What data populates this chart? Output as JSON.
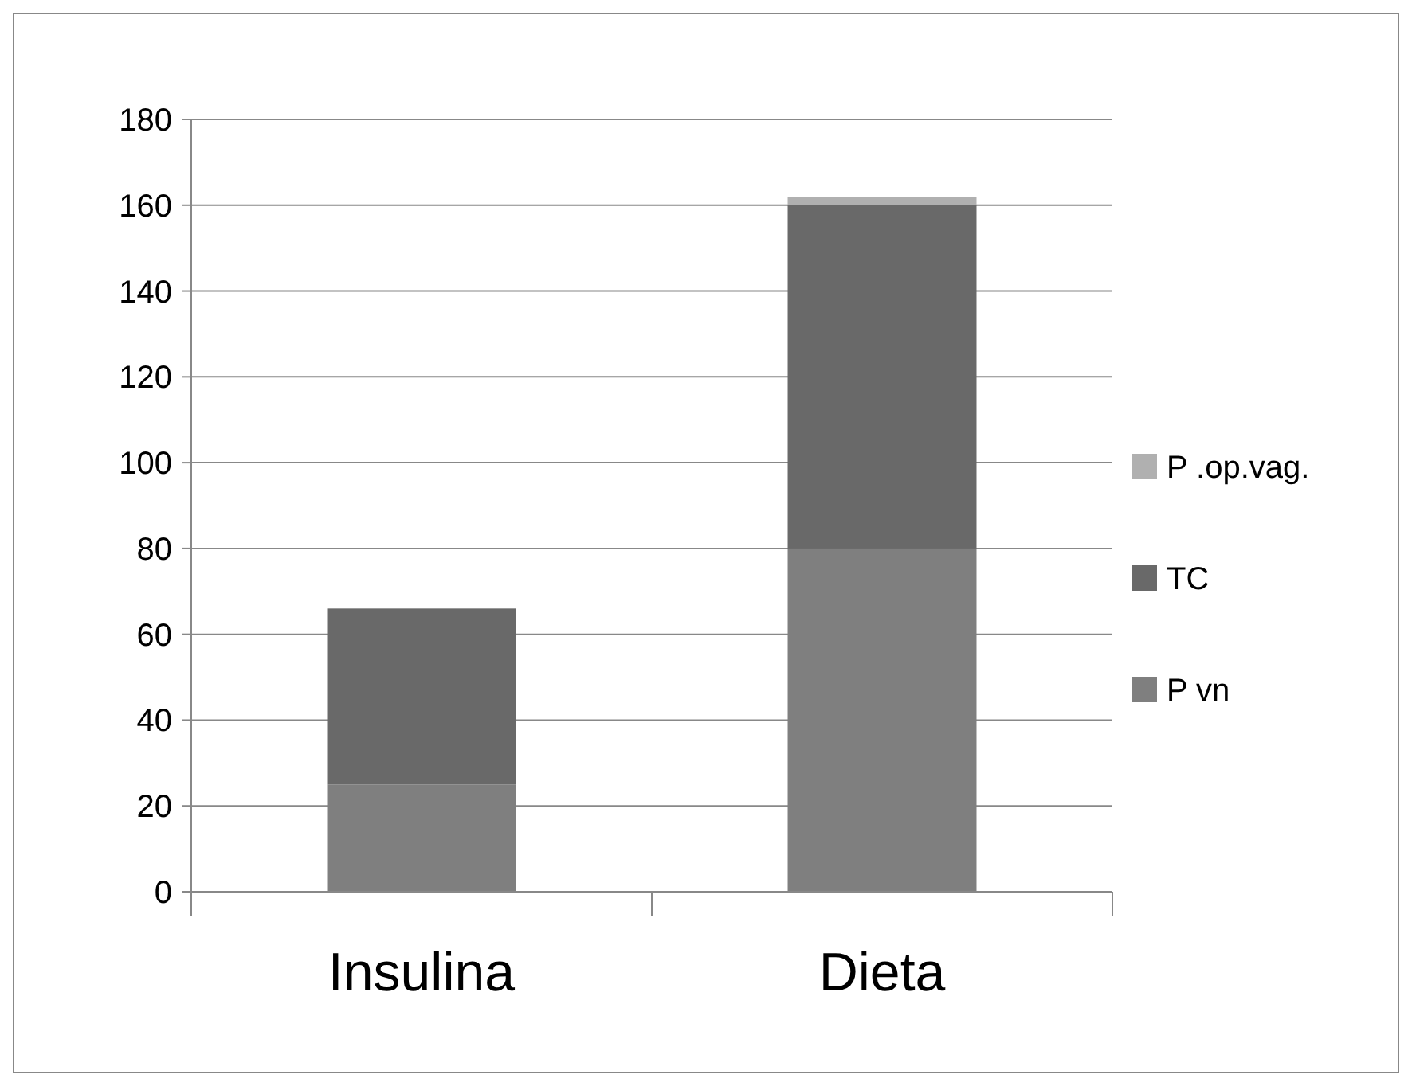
{
  "chart_data": {
    "type": "bar",
    "stacked": true,
    "categories": [
      "Insulina",
      "Dieta"
    ],
    "series": [
      {
        "name": "P vn",
        "color": "#7f7f7f",
        "values": [
          25,
          80
        ]
      },
      {
        "name": "TC",
        "color": "#696969",
        "values": [
          41,
          80
        ]
      },
      {
        "name": "P .op.vag.",
        "color": "#b0b0b0",
        "values": [
          0,
          2
        ]
      }
    ],
    "ylim": [
      0,
      180
    ],
    "yticks": [
      0,
      20,
      40,
      60,
      80,
      100,
      120,
      140,
      160,
      180
    ],
    "grid": "y",
    "legend": "right"
  }
}
